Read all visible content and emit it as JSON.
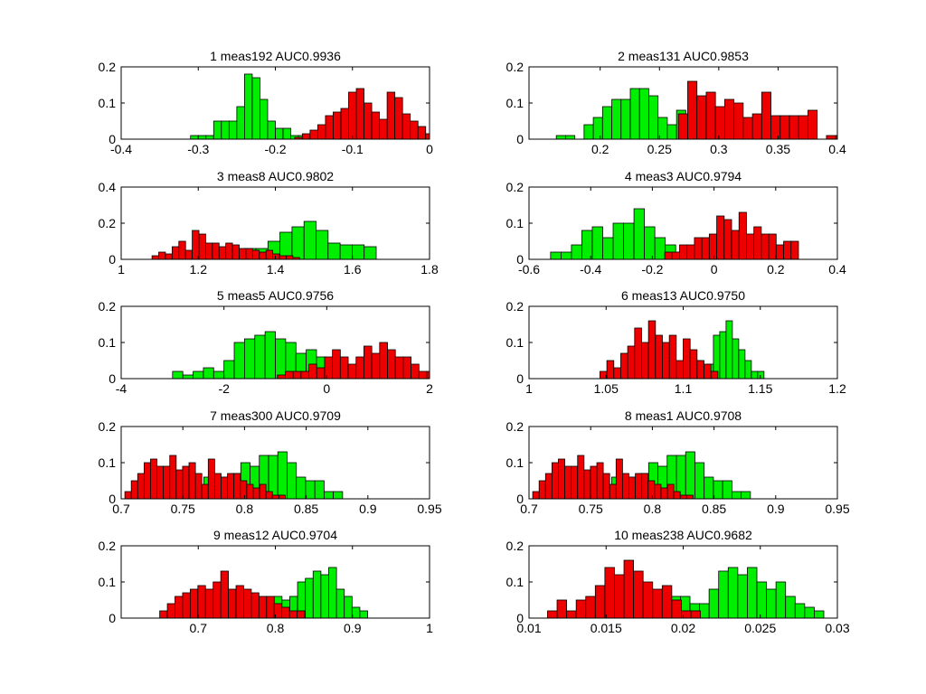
{
  "figure": {
    "background": "#ffffff"
  },
  "colors": {
    "class_a": "#00ee00",
    "class_b": "#ee0000",
    "edge": "#000000"
  },
  "chart_data": [
    {
      "type": "bar",
      "title": "1 meas192 AUC0.9936",
      "xlim": [
        -0.4,
        0
      ],
      "ylim": [
        0,
        0.2
      ],
      "xticks": [
        "-0.4",
        "-0.3",
        "-0.2",
        "-0.1",
        "0"
      ],
      "yticks": [
        "0",
        "0.1",
        "0.2"
      ],
      "series": [
        {
          "color": "green",
          "start": -0.31,
          "width": 0.01,
          "values": [
            0.01,
            0.01,
            0.01,
            0.05,
            0.05,
            0.05,
            0.09,
            0.18,
            0.17,
            0.11,
            0.05,
            0.03,
            0.03,
            0.01,
            0.01,
            0.01,
            0.01,
            0.01
          ]
        },
        {
          "color": "red",
          "start": -0.175,
          "width": 0.01,
          "values": [
            0.005,
            0.015,
            0.025,
            0.04,
            0.065,
            0.075,
            0.085,
            0.13,
            0.14,
            0.1,
            0.075,
            0.055,
            0.13,
            0.115,
            0.07,
            0.05,
            0.035,
            0.015,
            0.01,
            0.005,
            0.005,
            0.0,
            0.0,
            0.0,
            0.0,
            0.0,
            0.0,
            0.0,
            0.0,
            0.0,
            0.0,
            0.0,
            0.0,
            0.0,
            0.0
          ]
        }
      ]
    },
    {
      "type": "bar",
      "title": "2 meas131 AUC0.9853",
      "xlim": [
        0.14,
        0.4
      ],
      "ylim": [
        0,
        0.2
      ],
      "xticks": [
        "0.2",
        "0.25",
        "0.3",
        "0.35",
        "0.4"
      ],
      "yticks": [
        "0",
        "0.1",
        "0.2"
      ],
      "series": [
        {
          "color": "green",
          "start": 0.163,
          "width": 0.0078,
          "values": [
            0.01,
            0.01,
            0.0,
            0.04,
            0.06,
            0.09,
            0.11,
            0.11,
            0.14,
            0.14,
            0.12,
            0.06,
            0.04,
            0.08,
            0.04,
            0.01,
            0.01
          ]
        },
        {
          "color": "red",
          "start": 0.266,
          "width": 0.0078,
          "values": [
            0.07,
            0.16,
            0.12,
            0.13,
            0.09,
            0.11,
            0.1,
            0.06,
            0.07,
            0.13,
            0.065,
            0.065,
            0.065,
            0.065,
            0.08,
            0.0,
            0.01,
            0.01
          ]
        }
      ]
    },
    {
      "type": "bar",
      "title": "3 meas8 AUC0.9802",
      "xlim": [
        1,
        1.8
      ],
      "ylim": [
        0,
        0.4
      ],
      "xticks": [
        "1",
        "1.2",
        "1.4",
        "1.6",
        "1.8"
      ],
      "yticks": [
        "0",
        "0.2",
        "0.4"
      ],
      "series": [
        {
          "color": "green",
          "start": 1.1,
          "width": 0.0312,
          "values": [
            0.01,
            0.01,
            0.01,
            0.02,
            0.02,
            0.04,
            0.05,
            0.06,
            0.06,
            0.1,
            0.15,
            0.18,
            0.21,
            0.16,
            0.09,
            0.08,
            0.08,
            0.07
          ]
        },
        {
          "color": "red",
          "start": 1.08,
          "width": 0.0174,
          "values": [
            0.02,
            0.04,
            0.03,
            0.07,
            0.1,
            0.05,
            0.16,
            0.14,
            0.09,
            0.09,
            0.07,
            0.09,
            0.08,
            0.06,
            0.06,
            0.05,
            0.04,
            0.05,
            0.03,
            0.02,
            0.02,
            0.01
          ]
        }
      ]
    },
    {
      "type": "bar",
      "title": "4 meas3 AUC0.9794",
      "xlim": [
        -0.6,
        0.4
      ],
      "ylim": [
        0,
        0.2
      ],
      "xticks": [
        "-0.6",
        "-0.4",
        "-0.2",
        "0",
        "0.2",
        "0.4"
      ],
      "yticks": [
        "0",
        "0.1",
        "0.2"
      ],
      "series": [
        {
          "color": "green",
          "start": -0.53,
          "width": 0.0338,
          "values": [
            0.02,
            0.02,
            0.04,
            0.08,
            0.09,
            0.06,
            0.1,
            0.1,
            0.14,
            0.09,
            0.06,
            0.04,
            0.02,
            0.01,
            0.005,
            0.005,
            0.005
          ]
        },
        {
          "color": "red",
          "start": -0.16,
          "width": 0.0241,
          "values": [
            0.02,
            0.02,
            0.04,
            0.04,
            0.06,
            0.06,
            0.07,
            0.12,
            0.11,
            0.08,
            0.13,
            0.07,
            0.09,
            0.07,
            0.07,
            0.04,
            0.05,
            0.05
          ]
        }
      ]
    },
    {
      "type": "bar",
      "title": "5 meas5 AUC0.9756",
      "xlim": [
        -4,
        2
      ],
      "ylim": [
        0,
        0.2
      ],
      "xticks": [
        "-4",
        "-2",
        "0",
        "2"
      ],
      "yticks": [
        "0",
        "0.1",
        "0.2"
      ],
      "series": [
        {
          "color": "green",
          "start": -3.0,
          "width": 0.2,
          "values": [
            0.02,
            0.01,
            0.02,
            0.03,
            0.02,
            0.05,
            0.1,
            0.11,
            0.12,
            0.13,
            0.11,
            0.1,
            0.07,
            0.08,
            0.06,
            0.02,
            0.02,
            0.01,
            0.01,
            0.0,
            0.0
          ]
        },
        {
          "color": "red",
          "start": -0.96,
          "width": 0.153,
          "values": [
            0.01,
            0.02,
            0.02,
            0.02,
            0.04,
            0.03,
            0.06,
            0.08,
            0.06,
            0.04,
            0.06,
            0.09,
            0.07,
            0.1,
            0.08,
            0.06,
            0.06,
            0.04,
            0.02,
            0.02,
            0.02
          ]
        }
      ]
    },
    {
      "type": "bar",
      "title": "6 meas13 AUC0.9750",
      "xlim": [
        1,
        1.2
      ],
      "ylim": [
        0,
        0.2
      ],
      "xticks": [
        "1",
        "1.05",
        "1.1",
        "1.15",
        "1.2"
      ],
      "yticks": [
        "0",
        "0.1",
        "0.2"
      ],
      "series": [
        {
          "color": "green",
          "start": 1.095,
          "width": 0.0041,
          "values": [
            0.01,
            0.02,
            0.03,
            0.05,
            0.02,
            0.04,
            0.12,
            0.13,
            0.16,
            0.11,
            0.08,
            0.05,
            0.02,
            0.02
          ]
        },
        {
          "color": "red",
          "start": 1.046,
          "width": 0.0045,
          "values": [
            0.02,
            0.05,
            0.03,
            0.07,
            0.09,
            0.14,
            0.1,
            0.16,
            0.12,
            0.1,
            0.12,
            0.05,
            0.11,
            0.08,
            0.05,
            0.04,
            0.02
          ]
        }
      ]
    },
    {
      "type": "bar",
      "title": "7 meas300 AUC0.9709",
      "xlim": [
        0.7,
        0.95
      ],
      "ylim": [
        0,
        0.2
      ],
      "xticks": [
        "0.7",
        "0.75",
        "0.8",
        "0.85",
        "0.9",
        "0.95"
      ],
      "yticks": [
        "0",
        "0.1",
        "0.2"
      ],
      "series": [
        {
          "color": "green",
          "start": 0.752,
          "width": 0.0075,
          "values": [
            0.04,
            0.03,
            0.06,
            0.05,
            0.06,
            0.07,
            0.1,
            0.09,
            0.12,
            0.12,
            0.13,
            0.1,
            0.06,
            0.05,
            0.05,
            0.02,
            0.02
          ]
        },
        {
          "color": "red",
          "start": 0.703,
          "width": 0.0052,
          "values": [
            0.02,
            0.05,
            0.07,
            0.1,
            0.11,
            0.09,
            0.09,
            0.12,
            0.08,
            0.09,
            0.1,
            0.07,
            0.04,
            0.11,
            0.07,
            0.06,
            0.07,
            0.07,
            0.05,
            0.04,
            0.03,
            0.04,
            0.02,
            0.01,
            0.01
          ]
        }
      ]
    },
    {
      "type": "bar",
      "title": "8 meas1 AUC0.9708",
      "xlim": [
        0.7,
        0.95
      ],
      "ylim": [
        0,
        0.2
      ],
      "xticks": [
        "0.7",
        "0.75",
        "0.8",
        "0.85",
        "0.9",
        "0.95"
      ],
      "yticks": [
        "0",
        "0.1",
        "0.2"
      ],
      "series": [
        {
          "color": "green",
          "start": 0.752,
          "width": 0.0075,
          "values": [
            0.04,
            0.03,
            0.06,
            0.05,
            0.06,
            0.07,
            0.1,
            0.09,
            0.12,
            0.12,
            0.13,
            0.1,
            0.06,
            0.05,
            0.05,
            0.02,
            0.02
          ]
        },
        {
          "color": "red",
          "start": 0.703,
          "width": 0.0052,
          "values": [
            0.02,
            0.05,
            0.07,
            0.1,
            0.11,
            0.09,
            0.09,
            0.12,
            0.08,
            0.09,
            0.1,
            0.07,
            0.04,
            0.11,
            0.07,
            0.06,
            0.07,
            0.07,
            0.05,
            0.04,
            0.03,
            0.04,
            0.02,
            0.01,
            0.01
          ]
        }
      ]
    },
    {
      "type": "bar",
      "title": "9 meas12 AUC0.9704",
      "xlim": [
        0.6,
        1
      ],
      "ylim": [
        0,
        0.2
      ],
      "xticks": [
        "0.7",
        "0.8",
        "0.9",
        "1"
      ],
      "yticks": [
        "0",
        "0.1",
        "0.2"
      ],
      "series": [
        {
          "color": "green",
          "start": 0.748,
          "width": 0.0101,
          "values": [
            0.01,
            0.02,
            0.02,
            0.03,
            0.03,
            0.06,
            0.05,
            0.06,
            0.1,
            0.11,
            0.13,
            0.12,
            0.14,
            0.08,
            0.06,
            0.03,
            0.02
          ]
        },
        {
          "color": "red",
          "start": 0.65,
          "width": 0.0099,
          "values": [
            0.02,
            0.04,
            0.06,
            0.07,
            0.08,
            0.09,
            0.08,
            0.1,
            0.13,
            0.08,
            0.09,
            0.08,
            0.07,
            0.06,
            0.06,
            0.04,
            0.03,
            0.02,
            0.02
          ]
        }
      ]
    },
    {
      "type": "bar",
      "title": "10 meas238 AUC0.9682",
      "xlim": [
        0.01,
        0.03
      ],
      "ylim": [
        0,
        0.2
      ],
      "xticks": [
        "0.01",
        "0.015",
        "0.02",
        "0.025",
        "0.03"
      ],
      "yticks": [
        "0",
        "0.1",
        "0.2"
      ],
      "series": [
        {
          "color": "green",
          "start": 0.0192,
          "width": 0.00062,
          "values": [
            0.06,
            0.06,
            0.04,
            0.04,
            0.08,
            0.13,
            0.14,
            0.12,
            0.14,
            0.1,
            0.08,
            0.1,
            0.06,
            0.04,
            0.03,
            0.02
          ]
        },
        {
          "color": "red",
          "start": 0.0112,
          "width": 0.00062,
          "values": [
            0.02,
            0.05,
            0.02,
            0.05,
            0.06,
            0.09,
            0.14,
            0.12,
            0.16,
            0.13,
            0.1,
            0.08,
            0.09,
            0.05,
            0.02,
            0.02
          ]
        }
      ]
    }
  ]
}
